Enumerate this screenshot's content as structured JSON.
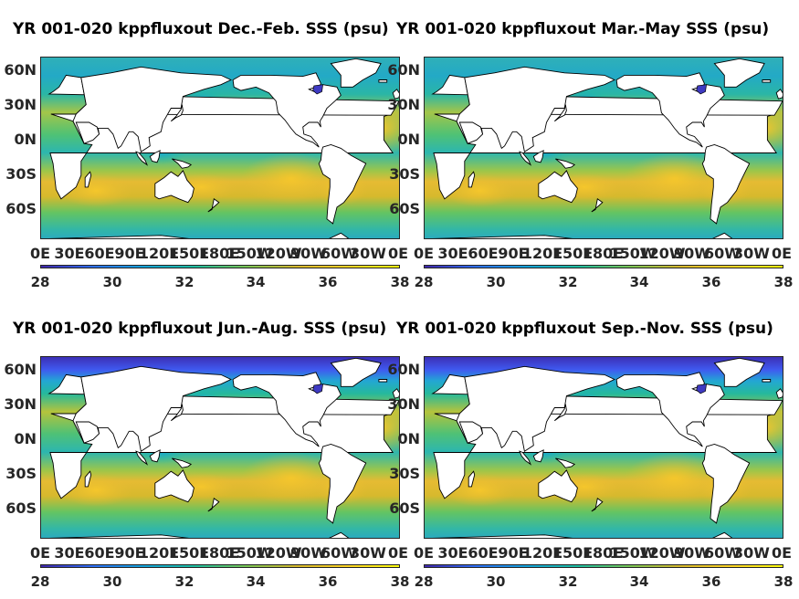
{
  "colorbar": {
    "ticks": [
      "28",
      "30",
      "32",
      "34",
      "36",
      "38"
    ],
    "range": [
      28,
      38
    ],
    "colormap": "parula",
    "colors": [
      "#3e26a8",
      "#2e6ef5",
      "#14a2d9",
      "#1ebda0",
      "#78c757",
      "#d7b92d",
      "#fbd325",
      "#f9fb0e"
    ]
  },
  "axes": {
    "lat_ticks": [
      "60N",
      "30N",
      "0N",
      "30S",
      "60S"
    ],
    "lon_ticks": [
      "0E",
      "30E",
      "60E",
      "90E",
      "120E",
      "150E",
      "180E",
      "150W",
      "120W",
      "90W",
      "60W",
      "30W",
      "0E"
    ],
    "land_color": "#ffffff",
    "coast_color": "#000000"
  },
  "panels": [
    {
      "title": "YR 001-020 kppfluxout Dec.-Feb. SSS (psu)",
      "season": "DJF",
      "arctic_fresh": false
    },
    {
      "title": "YR 001-020 kppfluxout Mar.-May SSS (psu)",
      "season": "MAM",
      "arctic_fresh": false
    },
    {
      "title": "YR 001-020 kppfluxout Jun.-Aug. SSS (psu)",
      "season": "JJA",
      "arctic_fresh": true
    },
    {
      "title": "YR 001-020 kppfluxout Sep.-Nov. SSS (psu)",
      "season": "SON",
      "arctic_fresh": true
    }
  ]
}
